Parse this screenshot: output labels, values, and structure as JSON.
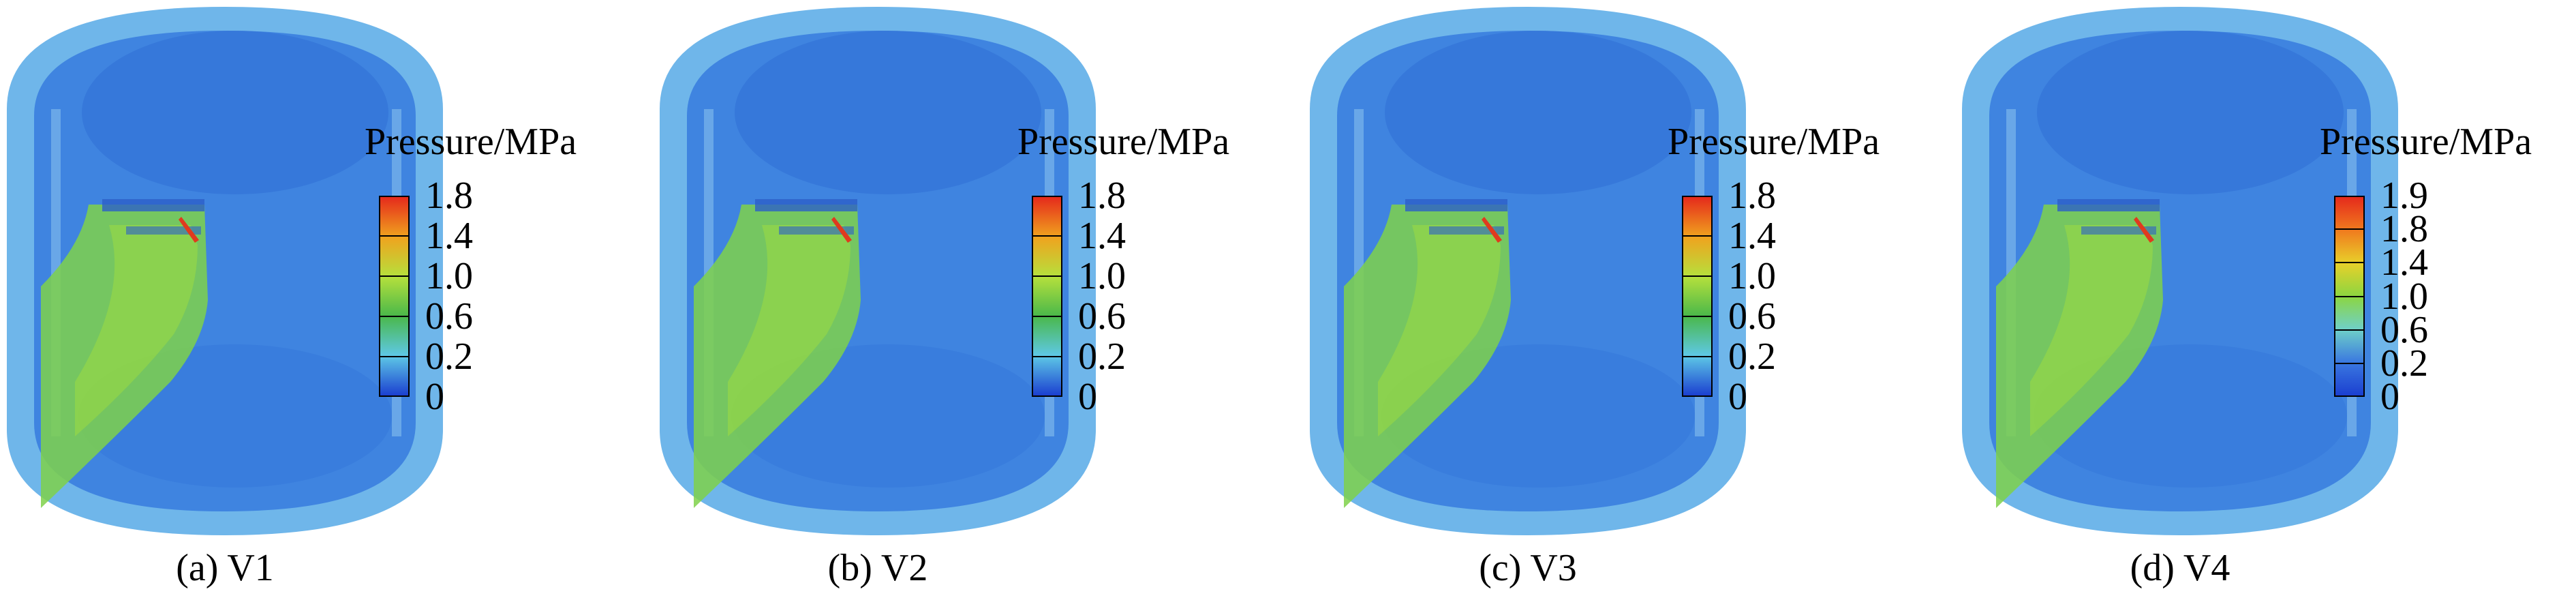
{
  "legend_title": "Pressure/MPa",
  "colors": {
    "vessel_outer": "#6fb6ea",
    "vessel_body": "#3f84e0",
    "vessel_deep": "#2f6fd6",
    "jet": "#7fd14a",
    "jet_core": "#a6e03a",
    "hot_spot": "#e03a1e"
  },
  "panels": [
    {
      "caption": "(a) V1",
      "colorbar": [
        {
          "label": "1.8",
          "color": "#e52a1c"
        },
        {
          "label": "1.4",
          "color": "#f0a21e"
        },
        {
          "label": "1.0",
          "color": "#b6e03c"
        },
        {
          "label": "0.6",
          "color": "#4ab84a"
        },
        {
          "label": "0.2",
          "color": "#5ec8e6"
        },
        {
          "label": "0",
          "color": "#1b3fd0"
        }
      ]
    },
    {
      "caption": "(b) V2",
      "colorbar": [
        {
          "label": "1.8",
          "color": "#e52a1c"
        },
        {
          "label": "1.4",
          "color": "#f0a21e"
        },
        {
          "label": "1.0",
          "color": "#b6e03c"
        },
        {
          "label": "0.6",
          "color": "#4ab84a"
        },
        {
          "label": "0.2",
          "color": "#5ec8e6"
        },
        {
          "label": "0",
          "color": "#1b3fd0"
        }
      ]
    },
    {
      "caption": "(c) V3",
      "colorbar": [
        {
          "label": "1.8",
          "color": "#e52a1c"
        },
        {
          "label": "1.4",
          "color": "#f0a21e"
        },
        {
          "label": "1.0",
          "color": "#b6e03c"
        },
        {
          "label": "0.6",
          "color": "#4ab84a"
        },
        {
          "label": "0.2",
          "color": "#5ec8e6"
        },
        {
          "label": "0",
          "color": "#1b3fd0"
        }
      ]
    },
    {
      "caption": "(d) V4",
      "colorbar": [
        {
          "label": "1.9",
          "color": "#e52a1c"
        },
        {
          "label": "1.8",
          "color": "#f07a1e"
        },
        {
          "label": "1.4",
          "color": "#e8d02a"
        },
        {
          "label": "1.0",
          "color": "#8cd640"
        },
        {
          "label": "0.6",
          "color": "#6fd0c8"
        },
        {
          "label": "0.2",
          "color": "#3a78e0"
        },
        {
          "label": "0",
          "color": "#1b3fd0"
        }
      ]
    }
  ]
}
